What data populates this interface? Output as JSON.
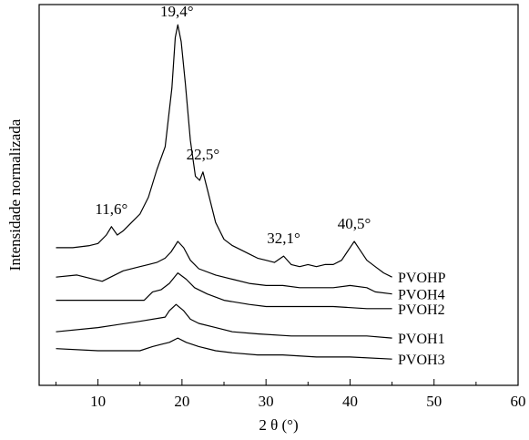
{
  "chart_data": {
    "type": "line",
    "xlabel": "2 θ (°)",
    "ylabel": "Intensidade normalizada",
    "xlim": [
      3,
      60
    ],
    "x_ticks": [
      "10",
      "20",
      "30",
      "40",
      "50",
      "60"
    ],
    "y_ticks_shown": false,
    "legend": "none (series labelled at right end of each curve)",
    "annotations": [
      {
        "text": "11,6°",
        "x": 11.6
      },
      {
        "text": "19,4°",
        "x": 19.4
      },
      {
        "text": "22,5°",
        "x": 22.5
      },
      {
        "text": "32,1°",
        "x": 32.1
      },
      {
        "text": "40,5°",
        "x": 40.5
      }
    ],
    "series": [
      {
        "name": "PVOHP",
        "points": [
          [
            5,
            0.62
          ],
          [
            7,
            0.62
          ],
          [
            9,
            0.63
          ],
          [
            10,
            0.64
          ],
          [
            11,
            0.68
          ],
          [
            11.6,
            0.72
          ],
          [
            12.3,
            0.68
          ],
          [
            13,
            0.7
          ],
          [
            14,
            0.74
          ],
          [
            15,
            0.78
          ],
          [
            16,
            0.86
          ],
          [
            17,
            0.99
          ],
          [
            18,
            1.1
          ],
          [
            18.8,
            1.38
          ],
          [
            19.2,
            1.62
          ],
          [
            19.5,
            1.68
          ],
          [
            19.9,
            1.6
          ],
          [
            20.4,
            1.4
          ],
          [
            21,
            1.13
          ],
          [
            21.6,
            0.96
          ],
          [
            22.1,
            0.94
          ],
          [
            22.5,
            0.98
          ],
          [
            23,
            0.9
          ],
          [
            24,
            0.74
          ],
          [
            25,
            0.66
          ],
          [
            26,
            0.63
          ],
          [
            27,
            0.61
          ],
          [
            28,
            0.59
          ],
          [
            29,
            0.57
          ],
          [
            30,
            0.56
          ],
          [
            31,
            0.55
          ],
          [
            32.1,
            0.58
          ],
          [
            33,
            0.54
          ],
          [
            34,
            0.53
          ],
          [
            35,
            0.54
          ],
          [
            36,
            0.53
          ],
          [
            37,
            0.54
          ],
          [
            38,
            0.54
          ],
          [
            39,
            0.56
          ],
          [
            40,
            0.62
          ],
          [
            40.5,
            0.65
          ],
          [
            41,
            0.62
          ],
          [
            42,
            0.56
          ],
          [
            43,
            0.53
          ],
          [
            44,
            0.5
          ],
          [
            45,
            0.48
          ]
        ]
      },
      {
        "name": "PVOH4",
        "points": [
          [
            5,
            0.48
          ],
          [
            7.5,
            0.49
          ],
          [
            10.5,
            0.46
          ],
          [
            13,
            0.51
          ],
          [
            15,
            0.53
          ],
          [
            16,
            0.54
          ],
          [
            17,
            0.55
          ],
          [
            18,
            0.57
          ],
          [
            18.7,
            0.6
          ],
          [
            19.5,
            0.65
          ],
          [
            20.2,
            0.62
          ],
          [
            21,
            0.56
          ],
          [
            22,
            0.52
          ],
          [
            24,
            0.49
          ],
          [
            26,
            0.47
          ],
          [
            28,
            0.45
          ],
          [
            30,
            0.44
          ],
          [
            32,
            0.44
          ],
          [
            34,
            0.43
          ],
          [
            36,
            0.43
          ],
          [
            38,
            0.43
          ],
          [
            40,
            0.44
          ],
          [
            42,
            0.43
          ],
          [
            43,
            0.41
          ],
          [
            45,
            0.4
          ]
        ]
      },
      {
        "name": "PVOH2",
        "points": [
          [
            5,
            0.37
          ],
          [
            10,
            0.37
          ],
          [
            15.5,
            0.37
          ],
          [
            16.5,
            0.41
          ],
          [
            17.5,
            0.42
          ],
          [
            18.5,
            0.45
          ],
          [
            19.5,
            0.5
          ],
          [
            20.5,
            0.47
          ],
          [
            21.5,
            0.43
          ],
          [
            23,
            0.4
          ],
          [
            25,
            0.37
          ],
          [
            28,
            0.35
          ],
          [
            30,
            0.34
          ],
          [
            34,
            0.34
          ],
          [
            38,
            0.34
          ],
          [
            42,
            0.33
          ],
          [
            45,
            0.33
          ]
        ]
      },
      {
        "name": "PVOH1",
        "points": [
          [
            5,
            0.22
          ],
          [
            10,
            0.24
          ],
          [
            15,
            0.27
          ],
          [
            18,
            0.29
          ],
          [
            18.5,
            0.32
          ],
          [
            19.3,
            0.35
          ],
          [
            20.2,
            0.32
          ],
          [
            21,
            0.28
          ],
          [
            22,
            0.26
          ],
          [
            24,
            0.24
          ],
          [
            26,
            0.22
          ],
          [
            29,
            0.21
          ],
          [
            33,
            0.2
          ],
          [
            38,
            0.2
          ],
          [
            42,
            0.2
          ],
          [
            45,
            0.19
          ]
        ]
      },
      {
        "name": "PVOH3",
        "points": [
          [
            5,
            0.14
          ],
          [
            10,
            0.13
          ],
          [
            15,
            0.13
          ],
          [
            16.5,
            0.15
          ],
          [
            17.5,
            0.16
          ],
          [
            18.5,
            0.17
          ],
          [
            19.5,
            0.19
          ],
          [
            20.5,
            0.17
          ],
          [
            22,
            0.15
          ],
          [
            24,
            0.13
          ],
          [
            26,
            0.12
          ],
          [
            29,
            0.11
          ],
          [
            32,
            0.11
          ],
          [
            36,
            0.1
          ],
          [
            40,
            0.1
          ],
          [
            45,
            0.09
          ]
        ]
      }
    ]
  }
}
